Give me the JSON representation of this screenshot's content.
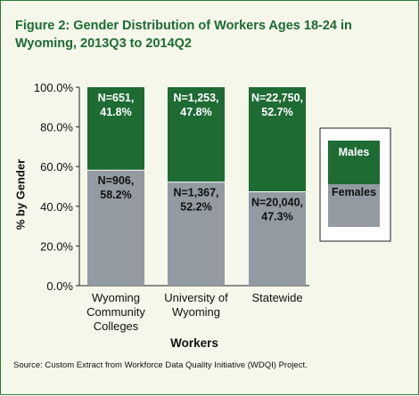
{
  "chart_data": {
    "type": "bar",
    "stacked": true,
    "title": "Figure 2: Gender Distribution of Workers Ages 18-24 in Wyoming, 2013Q3 to 2014Q2",
    "xlabel": "Workers",
    "ylabel": "% by Gender",
    "ylim": [
      0,
      100
    ],
    "yticks": [
      "0.0%",
      "20.0%",
      "40.0%",
      "60.0%",
      "80.0%",
      "100.0%"
    ],
    "categories": [
      [
        "Wyoming",
        "Community",
        "Colleges"
      ],
      [
        "University of",
        "Wyoming"
      ],
      [
        "Statewide"
      ]
    ],
    "series": [
      {
        "name": "Females",
        "color": "#939aa1",
        "values": [
          58.2,
          52.2,
          47.3
        ],
        "labels": [
          [
            "N=906,",
            "58.2%"
          ],
          [
            "N=1,367,",
            "52.2%"
          ],
          [
            "N=20,040,",
            "47.3%"
          ]
        ]
      },
      {
        "name": "Males",
        "color": "#1e6b34",
        "values": [
          41.8,
          47.8,
          52.7
        ],
        "labels": [
          [
            "N=651,",
            "41.8%"
          ],
          [
            "N=1,253,",
            "47.8%"
          ],
          [
            "N=22,750,",
            "52.7%"
          ]
        ]
      }
    ],
    "legend": {
      "position": "right",
      "males_label": "Males",
      "females_label": "Females"
    },
    "grid": false
  },
  "source": "Source: Custom Extract from Workforce Data Quality Initiative (WDQI) Project."
}
